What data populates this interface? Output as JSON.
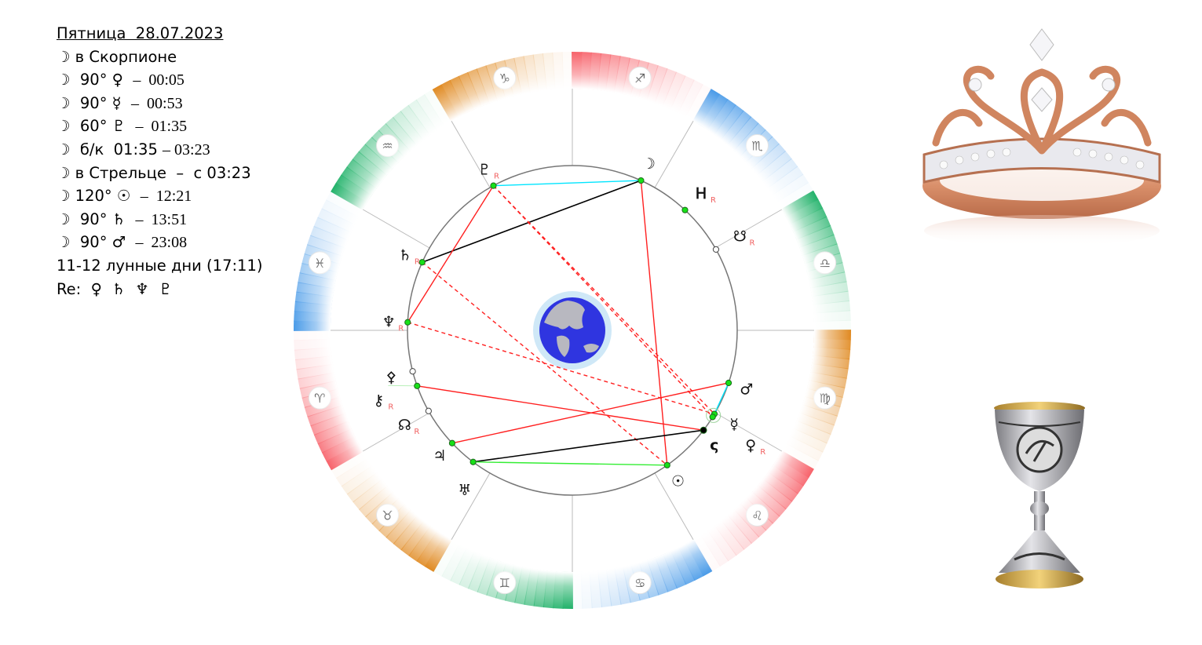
{
  "info": {
    "header": "Пятница  28.07.2023",
    "lines": [
      {
        "glyph": "☽",
        "text": " в Скорпионе",
        "time": ""
      },
      {
        "glyph": "☽",
        "text": "  90° ♀  ",
        "time": "–  00:05"
      },
      {
        "glyph": "☽",
        "text": "  90° ☿  ",
        "time": "–  00:53"
      },
      {
        "glyph": "☽",
        "text": "  60° ♇  ",
        "time": "–  01:35"
      },
      {
        "glyph": "☽",
        "text": "  б/к  01:35 ",
        "time": "– 03:23"
      },
      {
        "glyph": "☽",
        "text": " в Стрельце  –  с 03:23",
        "time": ""
      },
      {
        "glyph": "☽",
        "text": " 120° ☉  ",
        "time": "–  12:21"
      },
      {
        "glyph": "☽",
        "text": "  90° ♄  ",
        "time": "–  13:51"
      },
      {
        "glyph": "☽",
        "text": "  90° ♂  ",
        "time": "–  23:08"
      }
    ],
    "lunar_days": "11-12 лунные дни (17:11)",
    "retro": "Re:  ♀  ♄  ♆  ♇"
  },
  "chart": {
    "signs": [
      {
        "name": "aries",
        "glyph": "♈",
        "color": "#f7636b"
      },
      {
        "name": "taurus",
        "glyph": "♉",
        "color": "#e08a22"
      },
      {
        "name": "gemini",
        "glyph": "♊",
        "color": "#22b26a"
      },
      {
        "name": "cancer",
        "glyph": "♋",
        "color": "#4a9be8"
      },
      {
        "name": "leo",
        "glyph": "♌",
        "color": "#f7636b"
      },
      {
        "name": "virgo",
        "glyph": "♍",
        "color": "#e08a22"
      },
      {
        "name": "libra",
        "glyph": "♎",
        "color": "#22b26a"
      },
      {
        "name": "scorpio",
        "glyph": "♏",
        "color": "#4a9be8"
      },
      {
        "name": "sagittarius",
        "glyph": "♐",
        "color": "#f7636b"
      },
      {
        "name": "capricorn",
        "glyph": "♑",
        "color": "#e08a22"
      },
      {
        "name": "aquarius",
        "glyph": "♒",
        "color": "#22b26a"
      },
      {
        "name": "pisces",
        "glyph": "♓",
        "color": "#4a9be8"
      }
    ],
    "bodies": [
      {
        "id": "pluto",
        "glyph": "♇",
        "lon": 298.6,
        "retro": "R",
        "dot": "green"
      },
      {
        "id": "moon",
        "glyph": "☽",
        "lon": 245.4,
        "retro": "",
        "dot": "green"
      },
      {
        "id": "h-point",
        "glyph": "Ꮋ",
        "lon": 226.9,
        "retro": "R",
        "dot": "green"
      },
      {
        "id": "south-node",
        "glyph": "☋",
        "lon": 209.4,
        "retro": "R",
        "dot": "hollow"
      },
      {
        "id": "mars",
        "glyph": "♂",
        "lon": 161.4,
        "retro": "",
        "dot": "green"
      },
      {
        "id": "mercury",
        "glyph": "☿",
        "lon": 149.5,
        "retro": "",
        "dot": "green"
      },
      {
        "id": "venus",
        "glyph": "♀",
        "lon": 148.3,
        "retro": "R",
        "dot": "green"
      },
      {
        "id": "black-point",
        "glyph": "ς",
        "lon": 142.7,
        "retro": "",
        "dot": "black"
      },
      {
        "id": "sun",
        "glyph": "☉",
        "lon": 125.1,
        "retro": "",
        "dot": "green"
      },
      {
        "id": "uranus",
        "glyph": "♅",
        "lon": 53.0,
        "retro": "",
        "dot": "green"
      },
      {
        "id": "jupiter",
        "glyph": "♃",
        "lon": 43.2,
        "retro": "",
        "dot": "green"
      },
      {
        "id": "north-node",
        "glyph": "☊",
        "lon": 29.3,
        "retro": "R",
        "dot": "hollow"
      },
      {
        "id": "chiron",
        "glyph": "⚷",
        "lon": 19.7,
        "retro": "R",
        "dot": "green"
      },
      {
        "id": "proserpina",
        "glyph": "⚴",
        "lon": 14.4,
        "retro": "",
        "dot": "hollow"
      },
      {
        "id": "neptune",
        "glyph": "♆",
        "lon": 357.2,
        "retro": "R",
        "dot": "green"
      },
      {
        "id": "saturn",
        "glyph": "♄",
        "lon": 335.6,
        "retro": "R",
        "dot": "green"
      }
    ],
    "aspects": [
      {
        "a": "pluto",
        "b": "moon",
        "color": "#00e5ff",
        "style": "solid"
      },
      {
        "a": "moon",
        "b": "saturn",
        "color": "#000000",
        "style": "solid"
      },
      {
        "a": "moon",
        "b": "sun",
        "color": "#ff2020",
        "style": "solid"
      },
      {
        "a": "pluto",
        "b": "neptune",
        "color": "#ff2020",
        "style": "solid"
      },
      {
        "a": "pluto",
        "b": "mercury",
        "color": "#ff2020",
        "style": "dashed"
      },
      {
        "a": "pluto",
        "b": "venus",
        "color": "#ff2020",
        "style": "dashed"
      },
      {
        "a": "saturn",
        "b": "sun",
        "color": "#ff2020",
        "style": "dashed"
      },
      {
        "a": "neptune",
        "b": "mercury",
        "color": "#ff2020",
        "style": "dashed"
      },
      {
        "a": "chiron",
        "b": "black-point",
        "color": "#ff2020",
        "style": "solid"
      },
      {
        "a": "jupiter",
        "b": "mars",
        "color": "#ff2020",
        "style": "solid"
      },
      {
        "a": "uranus",
        "b": "black-point",
        "color": "#000000",
        "style": "solid"
      },
      {
        "a": "uranus",
        "b": "sun",
        "color": "#33ee33",
        "style": "solid"
      },
      {
        "a": "mars",
        "b": "mercury",
        "color": "#00e5ff",
        "style": "solid"
      }
    ]
  }
}
